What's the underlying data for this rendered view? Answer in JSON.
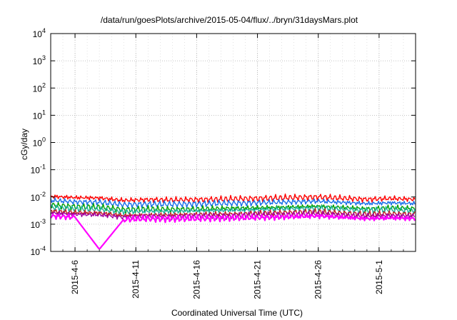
{
  "chart_data": {
    "type": "line",
    "title": "/data/run/goesPlots/archive/2015-05-04/flux/../bryn/31daysMars.plot",
    "xlabel": "Coordinated Universal Time (UTC)",
    "ylabel": "cGy/day",
    "yscale": "log",
    "ylim": [
      0.0001,
      10000
    ],
    "xlim": [
      "2015-04-04",
      "2015-05-04"
    ],
    "grid": true,
    "legend": "none",
    "x_ticks": [
      "2015-4-6",
      "2015-4-11",
      "2015-4-16",
      "2015-4-21",
      "2015-4-26",
      "2015-5-1"
    ],
    "y_ticks": [
      {
        "value": 0.0001,
        "base": "10",
        "exp": "-4"
      },
      {
        "value": 0.001,
        "base": "10",
        "exp": "-3"
      },
      {
        "value": 0.01,
        "base": "10",
        "exp": "-2"
      },
      {
        "value": 0.1,
        "base": "10",
        "exp": "-1"
      },
      {
        "value": 1,
        "base": "10",
        "exp": "0"
      },
      {
        "value": 10,
        "base": "10",
        "exp": "1"
      },
      {
        "value": 100,
        "base": "10",
        "exp": "2"
      },
      {
        "value": 1000,
        "base": "10",
        "exp": "3"
      },
      {
        "value": 10000,
        "base": "10",
        "exp": "4"
      }
    ],
    "x": [
      "2015-04-04",
      "2015-04-06",
      "2015-04-08",
      "2015-04-10",
      "2015-04-12",
      "2015-04-14",
      "2015-04-16",
      "2015-04-18",
      "2015-04-20",
      "2015-04-22",
      "2015-04-24",
      "2015-04-26",
      "2015-04-28",
      "2015-04-30",
      "2015-05-02",
      "2015-05-04"
    ],
    "series": [
      {
        "color": "#ff0000",
        "values": [
          0.0105,
          0.0095,
          0.0092,
          0.0075,
          0.008,
          0.0078,
          0.008,
          0.0082,
          0.0086,
          0.009,
          0.0095,
          0.01,
          0.009,
          0.0082,
          0.0088,
          0.0082
        ]
      },
      {
        "color": "#1a6fe8",
        "values": [
          0.0075,
          0.0066,
          0.0064,
          0.0052,
          0.0055,
          0.0054,
          0.0056,
          0.0058,
          0.006,
          0.0063,
          0.0066,
          0.007,
          0.0063,
          0.0057,
          0.0061,
          0.0057
        ]
      },
      {
        "color": "#00a000",
        "values": [
          0.005,
          0.0044,
          0.0042,
          0.0034,
          0.0036,
          0.0035,
          0.0036,
          0.0038,
          0.0039,
          0.0041,
          0.0043,
          0.0046,
          0.0041,
          0.0037,
          0.004,
          0.0037
        ]
      },
      {
        "color": "#20b0a0",
        "values": [
          0.0042,
          0.0037,
          0.0035,
          0.0029,
          0.003,
          0.003,
          0.0031,
          0.0032,
          0.0033,
          0.0035,
          0.0037,
          0.0039,
          0.0035,
          0.0032,
          0.0034,
          0.0032
        ]
      },
      {
        "color": "#c02020",
        "values": [
          0.003,
          0.0027,
          0.0026,
          0.0021,
          0.0022,
          0.0022,
          0.0023,
          0.0023,
          0.0024,
          0.0025,
          0.0027,
          0.0028,
          0.0025,
          0.0023,
          0.0024,
          0.0023
        ]
      },
      {
        "color": "#a000a0",
        "values": [
          0.0026,
          0.0023,
          0.0022,
          0.0018,
          0.0019,
          0.0019,
          0.0019,
          0.002,
          0.0021,
          0.0022,
          0.0023,
          0.0024,
          0.0022,
          0.002,
          0.0021,
          0.002
        ]
      },
      {
        "color": "#ff00ff",
        "values": [
          0.002,
          0.0018,
          0.00012,
          0.0015,
          0.0016,
          0.0016,
          0.0016,
          0.0017,
          0.0017,
          0.0018,
          0.0019,
          0.002,
          0.0018,
          0.0016,
          0.0017,
          0.0016
        ]
      }
    ]
  }
}
